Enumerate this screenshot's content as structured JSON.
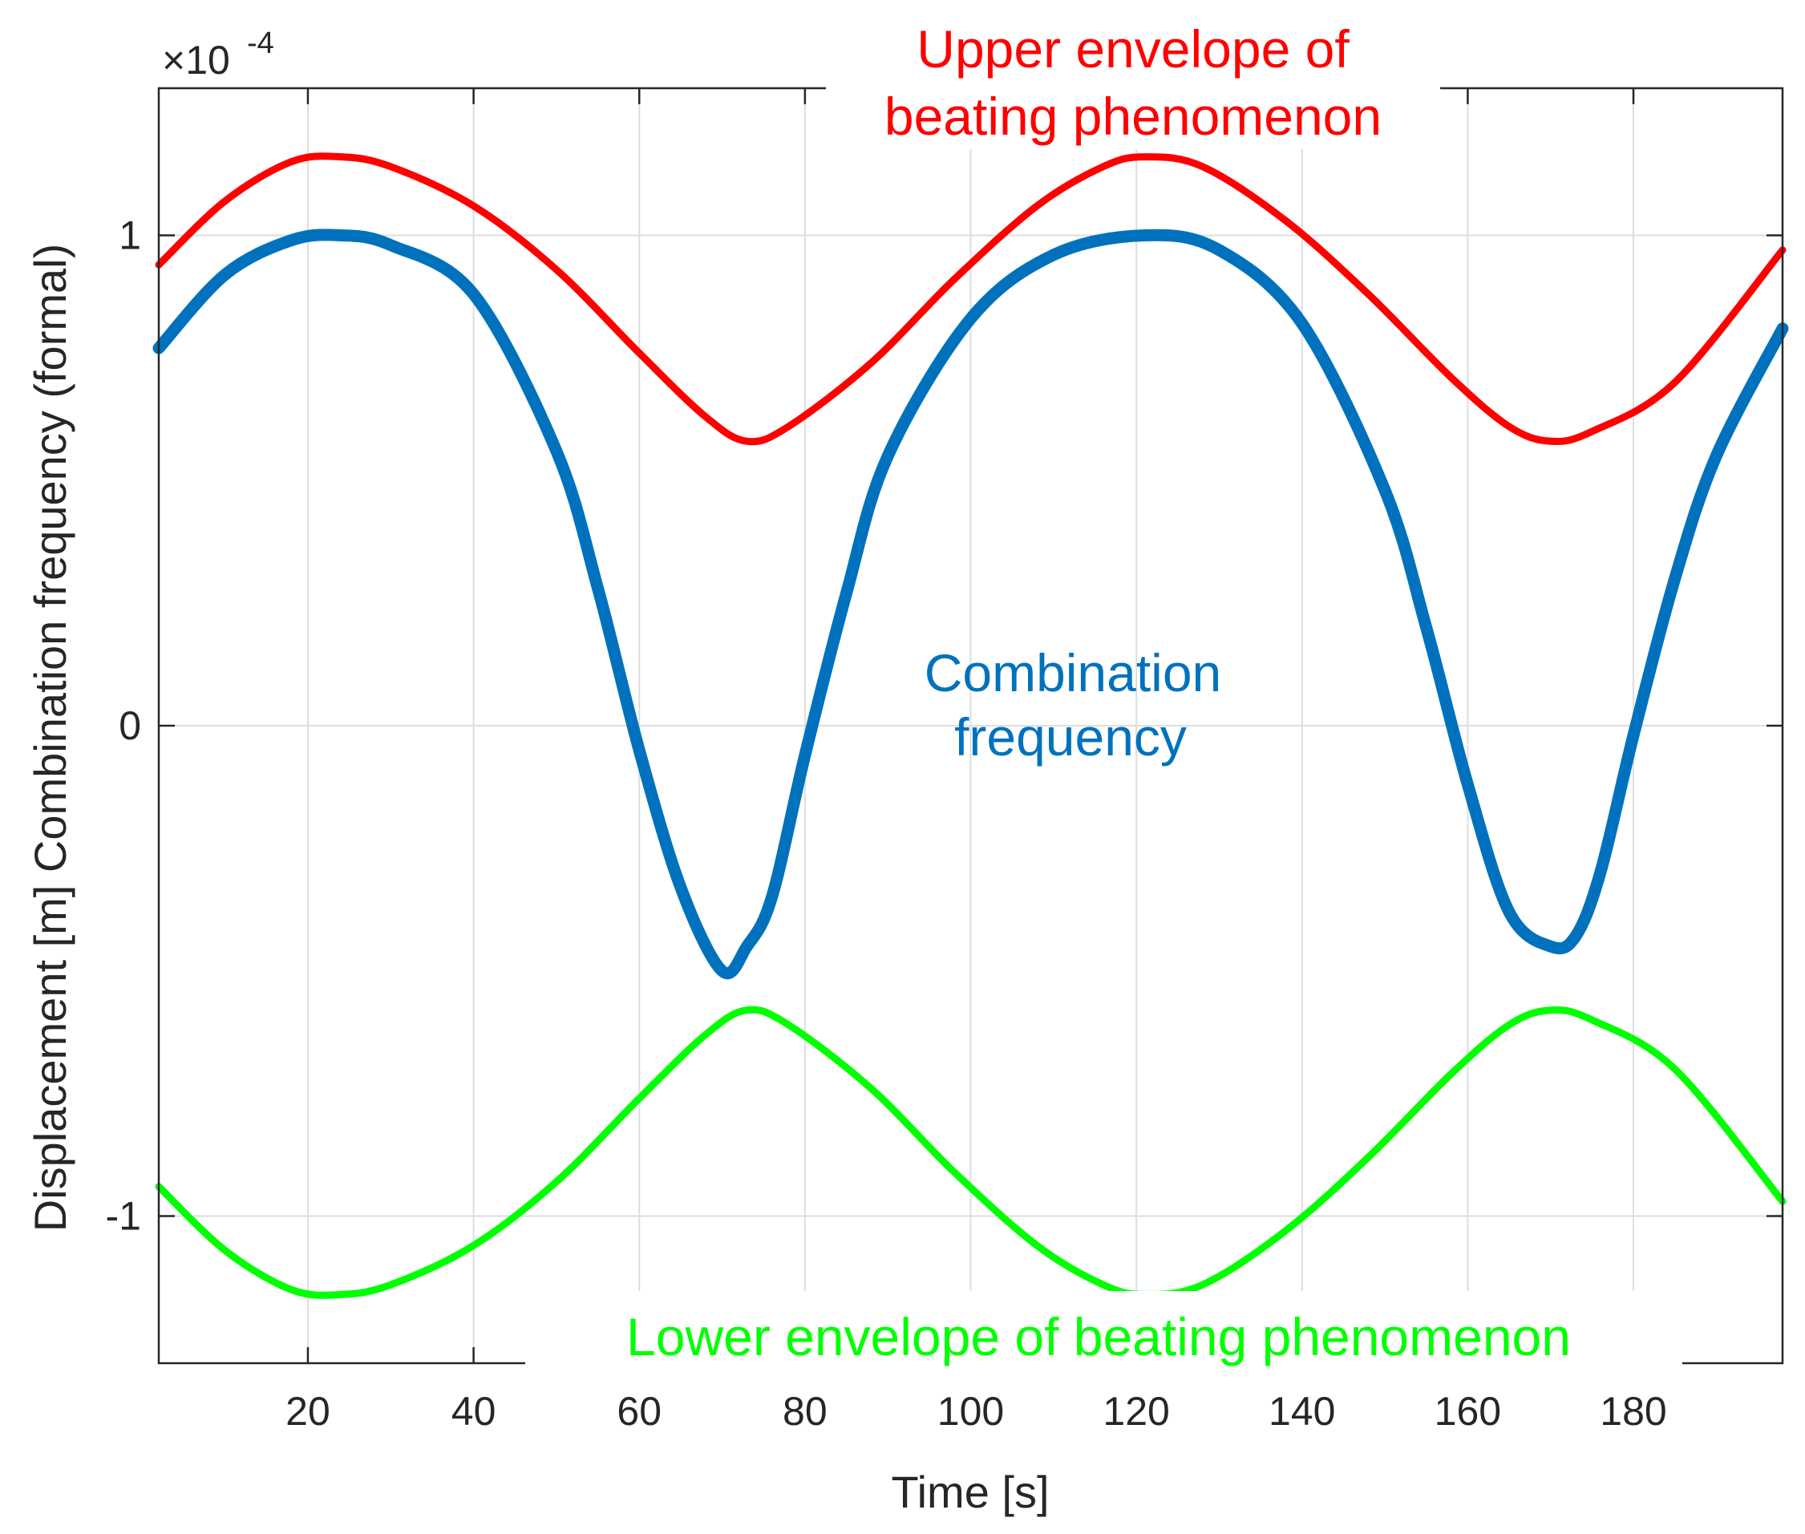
{
  "chart_data": {
    "type": "line",
    "xlabel": "Time [s]",
    "ylabel": "Displacement [m] Combination frequency (formal)",
    "y_exponent_prefix": "×10",
    "y_exponent_power": "-4",
    "xlim": [
      2,
      198
    ],
    "ylim": [
      -1.3,
      1.3
    ],
    "xticks": [
      20,
      40,
      60,
      80,
      100,
      120,
      140,
      160,
      180
    ],
    "yticks": [
      -1,
      0,
      1
    ],
    "ytick_labels": [
      "-1",
      "0",
      "1"
    ],
    "grid": true,
    "colors": {
      "upper": "#ff0000",
      "combination": "#0072bd",
      "lower": "#00ff00"
    },
    "series": [
      {
        "name": "Upper envelope of beating phenomenon",
        "x": [
          2,
          10,
          18,
          24,
          30,
          40,
          50,
          60,
          68,
          73,
          78,
          88,
          98,
          108,
          116,
          121,
          128,
          138,
          148,
          158,
          165,
          170,
          175,
          185,
          198
        ],
        "values": [
          0.94,
          1.07,
          1.15,
          1.16,
          1.14,
          1.06,
          0.93,
          0.76,
          0.63,
          0.58,
          0.61,
          0.74,
          0.91,
          1.06,
          1.14,
          1.16,
          1.14,
          1.03,
          0.88,
          0.71,
          0.61,
          0.58,
          0.6,
          0.7,
          0.97
        ]
      },
      {
        "name": "Combination frequency",
        "x": [
          2,
          10,
          18,
          24,
          30,
          40,
          50,
          55,
          60,
          65,
          70,
          73,
          76,
          80,
          85,
          90,
          100,
          110,
          121,
          130,
          140,
          150,
          155,
          160,
          165,
          170,
          173,
          176,
          180,
          185,
          190,
          198
        ],
        "values": [
          0.77,
          0.92,
          0.99,
          1.0,
          0.98,
          0.88,
          0.56,
          0.28,
          -0.05,
          -0.33,
          -0.5,
          -0.45,
          -0.35,
          -0.06,
          0.27,
          0.55,
          0.83,
          0.96,
          1.0,
          0.97,
          0.82,
          0.48,
          0.2,
          -0.12,
          -0.38,
          -0.45,
          -0.43,
          -0.3,
          -0.02,
          0.3,
          0.55,
          0.81
        ]
      },
      {
        "name": "Lower envelope of beating phenomenon",
        "x": [
          2,
          10,
          18,
          24,
          30,
          40,
          50,
          60,
          68,
          73,
          78,
          88,
          98,
          108,
          116,
          121,
          128,
          138,
          148,
          158,
          165,
          170,
          175,
          185,
          198
        ],
        "values": [
          -0.94,
          -1.07,
          -1.15,
          -1.16,
          -1.14,
          -1.06,
          -0.93,
          -0.76,
          -0.63,
          -0.58,
          -0.61,
          -0.74,
          -0.91,
          -1.06,
          -1.14,
          -1.16,
          -1.14,
          -1.03,
          -0.88,
          -0.71,
          -0.61,
          -0.58,
          -0.6,
          -0.7,
          -0.97
        ]
      }
    ],
    "annotations": {
      "upper_line1": "Upper envelope of",
      "upper_line2": "beating phenomenon",
      "combo_line1": "Combination",
      "combo_line2": "frequency",
      "lower_line1": "Lower envelope of beating phenomenon"
    }
  }
}
